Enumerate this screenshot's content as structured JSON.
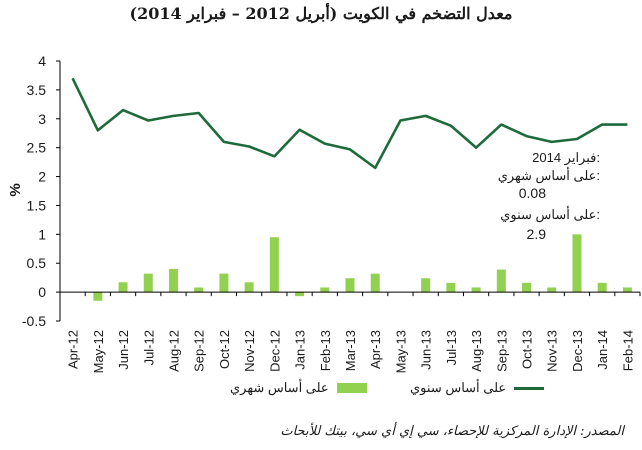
{
  "title": "معدل التضخم في الكويت (أبريل 2012 – فبراير 2014)",
  "source": "المصدر: الإدارة المركزية للإحصاء، سي إي أي سي، بيتك للأبحاث",
  "colors": {
    "bar": "#92d050",
    "line": "#1e6b3a"
  },
  "annotation": {
    "date": "فبراير 2014:",
    "monthly_label": "على أساس شهري:",
    "monthly_value": "0.08",
    "annual_label": "على أساس سنوي:",
    "annual_value": "2.9"
  },
  "chart_data": {
    "type": "bar+line",
    "title": "معدل التضخم في الكويت (أبريل 2012 – فبراير 2014)",
    "ylabel": "%",
    "ylim": [
      -0.5,
      4
    ],
    "yticks": [
      "-0.5",
      "0",
      "0.5",
      "1",
      "1.5",
      "2",
      "2.5",
      "3",
      "3.5",
      "4"
    ],
    "grid": false,
    "legend_position": "bottom",
    "categories": [
      "Apr-12",
      "May-12",
      "Jun-12",
      "Jul-12",
      "Aug-12",
      "Sep-12",
      "Oct-12",
      "Nov-12",
      "Dec-12",
      "Jan-13",
      "Feb-13",
      "Mar-13",
      "Apr-13",
      "May-13",
      "Jun-13",
      "Jul-13",
      "Aug-13",
      "Sep-13",
      "Oct-13",
      "Nov-13",
      "Dec-13",
      "Jan-14",
      "Feb-14"
    ],
    "series": [
      {
        "name": "على أساس شهري",
        "type": "bar",
        "values": [
          null,
          -0.15,
          0.17,
          0.32,
          0.4,
          0.08,
          0.32,
          0.17,
          0.95,
          -0.07,
          0.08,
          0.24,
          0.32,
          0,
          0.24,
          0.16,
          0.08,
          0.39,
          0.16,
          0.08,
          1.0,
          0.16,
          0.08
        ]
      },
      {
        "name": "على أساس سنوي",
        "type": "line",
        "values": [
          3.7,
          2.8,
          3.15,
          2.97,
          3.05,
          3.1,
          2.6,
          2.52,
          2.35,
          2.81,
          2.57,
          2.47,
          2.15,
          2.97,
          3.05,
          2.88,
          2.5,
          2.9,
          2.7,
          2.6,
          2.65,
          2.9,
          2.9
        ]
      }
    ]
  }
}
